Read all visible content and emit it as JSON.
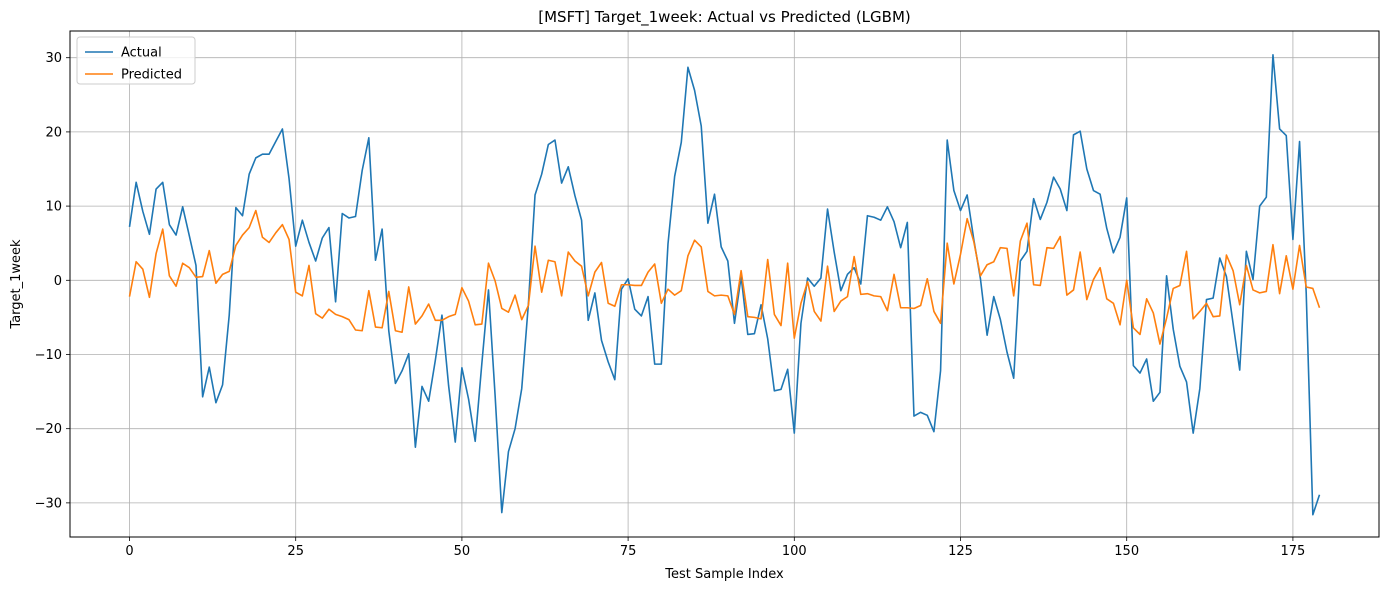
{
  "chart_data": {
    "type": "line",
    "title": "[MSFT] Target_1week: Actual vs Predicted (LGBM)",
    "xlabel": "Test Sample Index",
    "ylabel": "Target_1week",
    "xlim": [
      -8.95,
      187.95
    ],
    "ylim": [
      -34.6,
      33.6
    ],
    "xticks": [
      0,
      25,
      50,
      75,
      100,
      125,
      150,
      175
    ],
    "yticks": [
      -30,
      -20,
      -10,
      0,
      10,
      20,
      30
    ],
    "grid": true,
    "legend_position": "top-left",
    "series": [
      {
        "name": "Actual",
        "color": "#1f77b4",
        "values": [
          7.2,
          13.2,
          9.3,
          6.2,
          12.3,
          13.2,
          7.5,
          6.1,
          9.9,
          6.0,
          2.0,
          -15.7,
          -11.7,
          -16.5,
          -14.1,
          -4.7,
          9.8,
          8.7,
          14.3,
          16.5,
          17.0,
          17.0,
          18.7,
          20.4,
          13.7,
          4.6,
          8.1,
          5.1,
          2.6,
          5.7,
          7.1,
          -2.9,
          9.0,
          8.4,
          8.6,
          14.8,
          19.2,
          2.7,
          6.9,
          -6.8,
          -13.9,
          -12.2,
          -9.9,
          -22.5,
          -14.3,
          -16.3,
          -10.8,
          -4.7,
          -14.2,
          -21.8,
          -11.8,
          -16.0,
          -21.7,
          -11.2,
          -1.3,
          -15.6,
          -31.3,
          -23.1,
          -20.0,
          -14.6,
          -3.2,
          11.5,
          14.3,
          18.3,
          18.9,
          13.1,
          15.3,
          11.4,
          8.1,
          -5.4,
          -1.7,
          -8.1,
          -11.0,
          -13.4,
          -1.2,
          0.2,
          -3.9,
          -4.8,
          -2.2,
          -11.3,
          -11.3,
          4.9,
          14.0,
          18.6,
          28.7,
          25.6,
          20.8,
          7.7,
          11.6,
          4.5,
          2.6,
          -5.8,
          0.5,
          -7.3,
          -7.2,
          -3.3,
          -7.9,
          -14.9,
          -14.7,
          -12.0,
          -20.6,
          -5.8,
          0.3,
          -0.8,
          0.3,
          9.6,
          3.8,
          -1.4,
          0.8,
          1.7,
          -0.5,
          8.7,
          8.5,
          8.1,
          9.9,
          7.9,
          4.4,
          7.8,
          -18.3,
          -17.8,
          -18.2,
          -20.4,
          -12.2,
          18.9,
          12.1,
          9.4,
          11.5,
          5.5,
          0.2,
          -7.4,
          -2.2,
          -5.3,
          -9.7,
          -13.2,
          2.6,
          3.9,
          11.0,
          8.2,
          10.5,
          13.9,
          12.3,
          9.4,
          19.6,
          20.1,
          15.0,
          12.1,
          11.6,
          7.0,
          3.7,
          5.8,
          11.1,
          -11.5,
          -12.5,
          -10.6,
          -16.3,
          -15.1,
          0.6,
          -6.6,
          -11.6,
          -13.7,
          -20.6,
          -14.6,
          -2.6,
          -2.4,
          3.0,
          0.5,
          -5.8,
          -12.1,
          3.9,
          0.1,
          10.0,
          11.2,
          30.4,
          20.4,
          19.5,
          5.5,
          18.7,
          -1.7,
          -31.6,
          -28.9
        ]
      },
      {
        "name": "Predicted",
        "color": "#ff7f0e",
        "values": [
          -2.2,
          2.5,
          1.5,
          -2.3,
          3.6,
          6.9,
          0.6,
          -0.8,
          2.3,
          1.7,
          0.4,
          0.5,
          4.0,
          -0.4,
          0.8,
          1.2,
          4.7,
          6.1,
          7.1,
          9.4,
          5.8,
          5.1,
          6.4,
          7.5,
          5.5,
          -1.6,
          -2.1,
          2.0,
          -4.5,
          -5.1,
          -3.9,
          -4.6,
          -4.9,
          -5.3,
          -6.7,
          -6.8,
          -1.4,
          -6.3,
          -6.4,
          -1.5,
          -6.8,
          -7.0,
          -0.9,
          -5.9,
          -4.8,
          -3.2,
          -5.4,
          -5.4,
          -4.9,
          -4.6,
          -1.0,
          -2.8,
          -6.0,
          -5.9,
          2.3,
          -0.1,
          -3.8,
          -4.3,
          -2.0,
          -5.3,
          -3.4,
          4.6,
          -1.6,
          2.7,
          2.5,
          -2.1,
          3.8,
          2.6,
          1.9,
          -2.1,
          1.1,
          2.4,
          -3.1,
          -3.5,
          -0.6,
          -0.6,
          -0.7,
          -0.7,
          1.1,
          2.2,
          -3.1,
          -1.2,
          -2.0,
          -1.4,
          3.3,
          5.4,
          4.5,
          -1.5,
          -2.1,
          -2.0,
          -2.1,
          -4.6,
          1.3,
          -4.9,
          -5.0,
          -5.2,
          2.8,
          -4.6,
          -6.1,
          2.3,
          -7.8,
          -3.1,
          -0.2,
          -4.2,
          -5.5,
          1.9,
          -4.2,
          -2.8,
          -2.2,
          3.2,
          -1.9,
          -1.8,
          -2.1,
          -2.2,
          -4.1,
          0.8,
          -3.7,
          -3.7,
          -3.8,
          -3.4,
          0.2,
          -4.2,
          -5.8,
          5.0,
          -0.5,
          3.5,
          8.3,
          5.2,
          0.6,
          2.1,
          2.5,
          4.4,
          4.3,
          -2.1,
          5.3,
          7.7,
          -0.6,
          -0.7,
          4.4,
          4.3,
          5.9,
          -2.0,
          -1.3,
          3.8,
          -2.6,
          0.1,
          1.7,
          -2.5,
          -3.1,
          -6.0,
          0.0,
          -6.4,
          -7.3,
          -2.5,
          -4.4,
          -8.6,
          -5.1,
          -1.1,
          -0.7,
          3.9,
          -5.2,
          -4.2,
          -3.1,
          -4.9,
          -4.8,
          3.4,
          1.3,
          -3.3,
          2.0,
          -1.3,
          -1.7,
          -1.5,
          4.8,
          -1.8,
          3.3,
          -1.2,
          4.7,
          -0.9,
          -1.1,
          -3.7
        ]
      }
    ]
  }
}
